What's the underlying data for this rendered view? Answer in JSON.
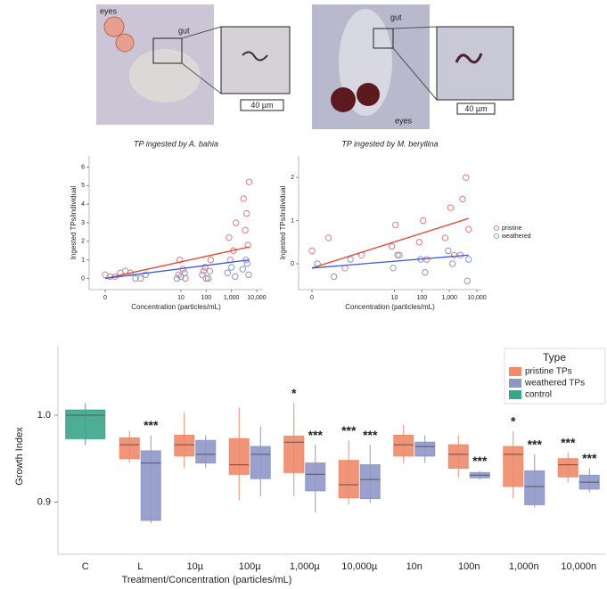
{
  "panels": [
    {
      "labels": [
        "eyes",
        "gut"
      ],
      "scale_bar": "40 µm"
    },
    {
      "labels": [
        "gut",
        "eyes"
      ],
      "scale_bar": "40 µm"
    }
  ],
  "chart_data": [
    {
      "type": "scatter",
      "title": "TP ingested by A. bahia",
      "x_label": "Concentration (particles/mL)",
      "y_label": "Ingested TPs/individual",
      "xscale": "symlog",
      "xlim": [
        0,
        10000
      ],
      "xticks": [
        0,
        10,
        100,
        {
          "value": 1000,
          "label": "1,000"
        },
        {
          "value": 10000,
          "label": "10,000"
        }
      ],
      "ylim": [
        -0.6,
        6.6
      ],
      "yticks": [
        0,
        1,
        2,
        3,
        4,
        5,
        6
      ],
      "series": [
        {
          "color": "#e07a86",
          "x": [
            0,
            0.4,
            0.7,
            0.2,
            0.5,
            8,
            12,
            15,
            9,
            80,
            120,
            150,
            90,
            800,
            1200,
            1500,
            900,
            3000,
            4000,
            5000,
            3500,
            4500
          ],
          "values": [
            0.2,
            0.4,
            0,
            0.1,
            0.3,
            0.2,
            0.5,
            0,
            1,
            0.4,
            0,
            1,
            0.6,
            2.2,
            1.5,
            3,
            1,
            4.3,
            3.5,
            5.2,
            2.6,
            1.8
          ]
        },
        {
          "color": "#8c96c8",
          "x": [
            0.1,
            0.3,
            0.6,
            0.8,
            7,
            10,
            14,
            70,
            100,
            140,
            700,
            1000,
            1400,
            2800,
            3800,
            4800,
            4200
          ],
          "values": [
            0.1,
            0.3,
            0,
            0.2,
            0,
            0.1,
            0.3,
            0.2,
            0,
            0.4,
            0.3,
            0.6,
            0.1,
            0.5,
            1,
            0.2,
            0.8
          ]
        }
      ],
      "lines": [
        {
          "color": "#e8412c",
          "x": [
            0,
            5000
          ],
          "values": [
            0,
            1.7
          ]
        },
        {
          "color": "#3f5bd6",
          "x": [
            0,
            5000
          ],
          "values": [
            0,
            1.0
          ]
        }
      ]
    },
    {
      "type": "scatter",
      "title": "TP ingested by M. beryllina",
      "x_label": "Concentration (particles/mL)",
      "y_label": "Ingested TPs/individual",
      "xscale": "symlog",
      "xlim": [
        0,
        10000
      ],
      "xticks": [
        0,
        10,
        100,
        {
          "value": 1000,
          "label": "1,000"
        },
        {
          "value": 10000,
          "label": "10,000"
        }
      ],
      "ylim": [
        -0.6,
        2.5
      ],
      "yticks": [
        0,
        1,
        2
      ],
      "legend": "right",
      "series": [
        {
          "name": "pristine",
          "color": "#e07a86",
          "x": [
            0,
            0.3,
            0.6,
            0.9,
            8,
            11,
            15,
            80,
            110,
            150,
            700,
            1100,
            1500,
            3000,
            4000,
            5000
          ],
          "values": [
            0.3,
            0.6,
            -0.1,
            0.2,
            0.4,
            0.9,
            0.2,
            0.5,
            1,
            0.1,
            0.6,
            1.3,
            0.2,
            1.5,
            2,
            0.8
          ]
        },
        {
          "name": "weathered",
          "color": "#8c96c8",
          "x": [
            0.1,
            0.4,
            0.7,
            9,
            13,
            90,
            130,
            900,
            1300,
            2500,
            4500,
            5000
          ],
          "values": [
            0,
            -0.3,
            0.1,
            -0.1,
            0.2,
            0.1,
            -0.2,
            0.3,
            0,
            0.2,
            -0.4,
            0.1
          ]
        }
      ],
      "lines": [
        {
          "color": "#e8412c",
          "x": [
            0,
            5000
          ],
          "values": [
            -0.1,
            1.05
          ]
        },
        {
          "color": "#3f5bd6",
          "x": [
            0,
            5000
          ],
          "values": [
            -0.1,
            0.2
          ]
        }
      ]
    },
    {
      "type": "box",
      "x_label": "Treatment/Concentration (particles/mL)",
      "y_label": "Growth Index",
      "legend_title": "Type",
      "legend": "top-right",
      "categories": [
        "C",
        "L",
        "10µ",
        "100µ",
        "1,000µ",
        "10,000µ",
        "10n",
        "100n",
        "1,000n",
        "10,000n"
      ],
      "ylim": [
        0.84,
        1.08
      ],
      "yticks": [
        0.9,
        {
          "value": 1.0,
          "label": "1.0"
        }
      ],
      "series": [
        {
          "name": "pristine TPs",
          "color": "#f08a6a",
          "low": [
            null,
            0.945,
            0.939,
            0.902,
            0.907,
            0.897,
            0.945,
            0.929,
            0.904,
            0.923
          ],
          "q1": [
            null,
            0.95,
            0.953,
            0.932,
            0.934,
            0.905,
            0.953,
            0.939,
            0.918,
            0.929
          ],
          "median": [
            null,
            0.966,
            0.966,
            0.943,
            0.969,
            0.92,
            0.966,
            0.955,
            0.955,
            0.943
          ],
          "q3": [
            null,
            0.974,
            0.977,
            0.973,
            0.976,
            0.948,
            0.977,
            0.966,
            0.964,
            0.95
          ],
          "high": [
            null,
            0.982,
            1.003,
            1.009,
            1.014,
            0.971,
            0.989,
            0.977,
            0.982,
            0.957
          ],
          "annotations": [
            null,
            null,
            null,
            null,
            "*",
            "***",
            null,
            null,
            "*",
            "***"
          ]
        },
        {
          "name": "weathered TPs",
          "color": "#8f97c6",
          "low": [
            null,
            0.876,
            0.939,
            0.907,
            0.888,
            0.899,
            0.945,
            0.926,
            0.894,
            0.911
          ],
          "q1": [
            null,
            0.879,
            0.945,
            0.927,
            0.913,
            0.904,
            0.953,
            0.928,
            0.897,
            0.915
          ],
          "median": [
            null,
            0.945,
            0.955,
            0.955,
            0.932,
            0.926,
            0.964,
            0.931,
            0.918,
            0.923
          ],
          "q3": [
            null,
            0.959,
            0.971,
            0.964,
            0.945,
            0.943,
            0.969,
            0.934,
            0.936,
            0.931
          ],
          "high": [
            null,
            0.977,
            0.977,
            0.987,
            0.966,
            0.966,
            0.977,
            0.936,
            0.955,
            0.939
          ],
          "annotations": [
            null,
            "***",
            null,
            null,
            "***",
            "***",
            null,
            "***",
            "***",
            "***"
          ]
        },
        {
          "name": "control",
          "color": "#3aa58a",
          "low": [
            0.966,
            null,
            null,
            null,
            null,
            null,
            null,
            null,
            null,
            null
          ],
          "q1": [
            0.973,
            null,
            null,
            null,
            null,
            null,
            null,
            null,
            null,
            null
          ],
          "median": [
            1.0,
            null,
            null,
            null,
            null,
            null,
            null,
            null,
            null,
            null
          ],
          "q3": [
            1.006,
            null,
            null,
            null,
            null,
            null,
            null,
            null,
            null,
            null
          ],
          "high": [
            1.014,
            null,
            null,
            null,
            null,
            null,
            null,
            null,
            null,
            null
          ],
          "annotations": [
            null,
            null,
            null,
            null,
            null,
            null,
            null,
            null,
            null,
            null
          ]
        }
      ]
    }
  ]
}
